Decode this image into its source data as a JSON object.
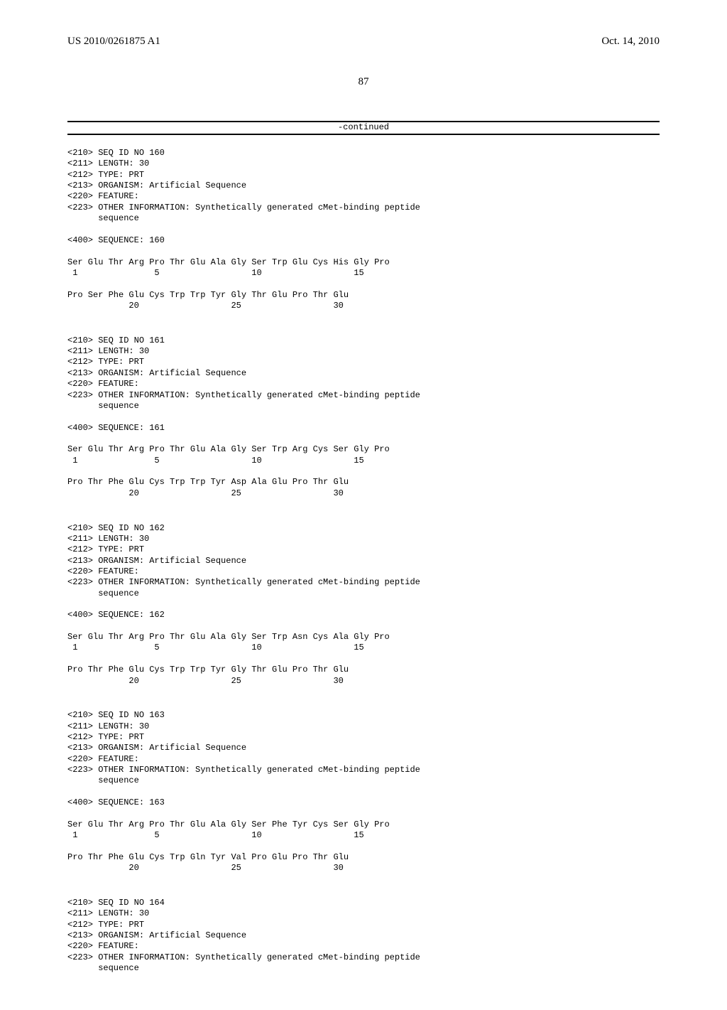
{
  "header": {
    "pub_number": "US 2010/0261875 A1",
    "pub_date": "Oct. 14, 2010"
  },
  "page_number": "87",
  "continued_label": "-continued",
  "entries": [
    {
      "tags": [
        "<210> SEQ ID NO 160",
        "<211> LENGTH: 30",
        "<212> TYPE: PRT",
        "<213> ORGANISM: Artificial Sequence",
        "<220> FEATURE:",
        "<223> OTHER INFORMATION: Synthetically generated cMet-binding peptide",
        "      sequence"
      ],
      "seq_header": "<400> SEQUENCE: 160",
      "seq_lines": [
        "Ser Glu Thr Arg Pro Thr Glu Ala Gly Ser Trp Glu Cys His Gly Pro",
        " 1               5                  10                  15",
        "",
        "Pro Ser Phe Glu Cys Trp Trp Tyr Gly Thr Glu Pro Thr Glu",
        "            20                  25                  30"
      ]
    },
    {
      "tags": [
        "<210> SEQ ID NO 161",
        "<211> LENGTH: 30",
        "<212> TYPE: PRT",
        "<213> ORGANISM: Artificial Sequence",
        "<220> FEATURE:",
        "<223> OTHER INFORMATION: Synthetically generated cMet-binding peptide",
        "      sequence"
      ],
      "seq_header": "<400> SEQUENCE: 161",
      "seq_lines": [
        "Ser Glu Thr Arg Pro Thr Glu Ala Gly Ser Trp Arg Cys Ser Gly Pro",
        " 1               5                  10                  15",
        "",
        "Pro Thr Phe Glu Cys Trp Trp Tyr Asp Ala Glu Pro Thr Glu",
        "            20                  25                  30"
      ]
    },
    {
      "tags": [
        "<210> SEQ ID NO 162",
        "<211> LENGTH: 30",
        "<212> TYPE: PRT",
        "<213> ORGANISM: Artificial Sequence",
        "<220> FEATURE:",
        "<223> OTHER INFORMATION: Synthetically generated cMet-binding peptide",
        "      sequence"
      ],
      "seq_header": "<400> SEQUENCE: 162",
      "seq_lines": [
        "Ser Glu Thr Arg Pro Thr Glu Ala Gly Ser Trp Asn Cys Ala Gly Pro",
        " 1               5                  10                  15",
        "",
        "Pro Thr Phe Glu Cys Trp Trp Tyr Gly Thr Glu Pro Thr Glu",
        "            20                  25                  30"
      ]
    },
    {
      "tags": [
        "<210> SEQ ID NO 163",
        "<211> LENGTH: 30",
        "<212> TYPE: PRT",
        "<213> ORGANISM: Artificial Sequence",
        "<220> FEATURE:",
        "<223> OTHER INFORMATION: Synthetically generated cMet-binding peptide",
        "      sequence"
      ],
      "seq_header": "<400> SEQUENCE: 163",
      "seq_lines": [
        "Ser Glu Thr Arg Pro Thr Glu Ala Gly Ser Phe Tyr Cys Ser Gly Pro",
        " 1               5                  10                  15",
        "",
        "Pro Thr Phe Glu Cys Trp Gln Tyr Val Pro Glu Pro Thr Glu",
        "            20                  25                  30"
      ]
    },
    {
      "tags": [
        "<210> SEQ ID NO 164",
        "<211> LENGTH: 30",
        "<212> TYPE: PRT",
        "<213> ORGANISM: Artificial Sequence",
        "<220> FEATURE:",
        "<223> OTHER INFORMATION: Synthetically generated cMet-binding peptide",
        "      sequence"
      ],
      "seq_header": "",
      "seq_lines": []
    }
  ]
}
